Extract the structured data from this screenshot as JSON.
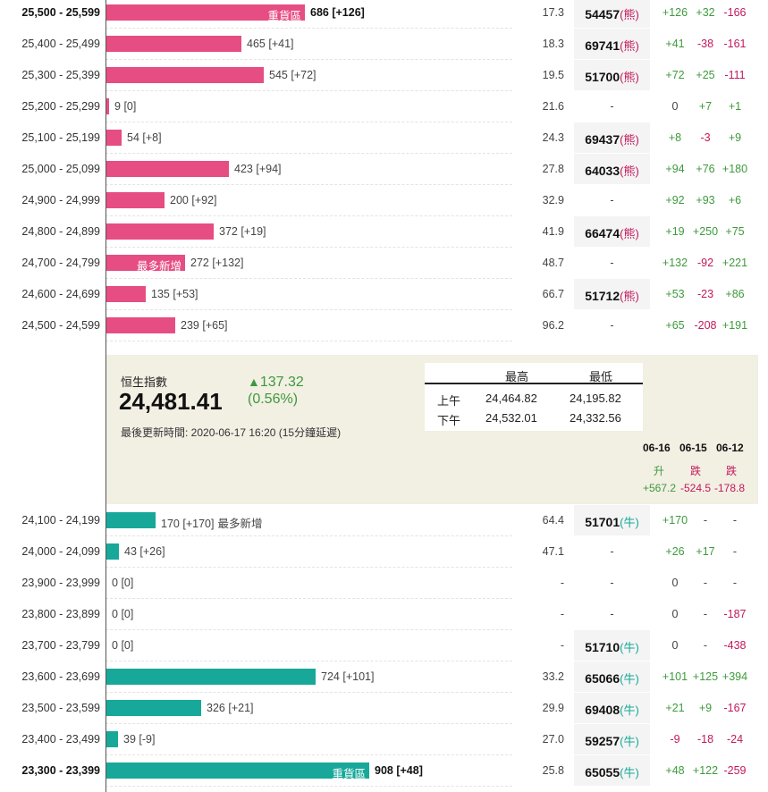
{
  "upper_rows": [
    {
      "range": "25,500 - 25,599",
      "bold": true,
      "bar_value": 686,
      "count": "686",
      "delta": "[+126]",
      "inbar": "重貨區",
      "outlabel": "",
      "pct": "17.3",
      "code": "54457",
      "suffix": "(熊)",
      "d1": "+126",
      "d2": "+32",
      "d3": "-166"
    },
    {
      "range": "25,400 - 25,499",
      "bold": false,
      "bar_value": 465,
      "count": "465",
      "delta": "[+41]",
      "inbar": "",
      "outlabel": "",
      "pct": "18.3",
      "code": "69741",
      "suffix": "(熊)",
      "d1": "+41",
      "d2": "-38",
      "d3": "-161"
    },
    {
      "range": "25,300 - 25,399",
      "bold": false,
      "bar_value": 545,
      "count": "545",
      "delta": "[+72]",
      "inbar": "",
      "outlabel": "",
      "pct": "19.5",
      "code": "51700",
      "suffix": "(熊)",
      "d1": "+72",
      "d2": "+25",
      "d3": "-111"
    },
    {
      "range": "25,200 - 25,299",
      "bold": false,
      "bar_value": 9,
      "count": "9",
      "delta": "[0]",
      "inbar": "",
      "outlabel": "",
      "pct": "21.6",
      "code": "-",
      "suffix": "",
      "d1": "0",
      "d2": "+7",
      "d3": "+1"
    },
    {
      "range": "25,100 - 25,199",
      "bold": false,
      "bar_value": 54,
      "count": "54",
      "delta": "[+8]",
      "inbar": "",
      "outlabel": "",
      "pct": "24.3",
      "code": "69437",
      "suffix": "(熊)",
      "d1": "+8",
      "d2": "-3",
      "d3": "+9"
    },
    {
      "range": "25,000 - 25,099",
      "bold": false,
      "bar_value": 423,
      "count": "423",
      "delta": "[+94]",
      "inbar": "",
      "outlabel": "",
      "pct": "27.8",
      "code": "64033",
      "suffix": "(熊)",
      "d1": "+94",
      "d2": "+76",
      "d3": "+180"
    },
    {
      "range": "24,900 - 24,999",
      "bold": false,
      "bar_value": 200,
      "count": "200",
      "delta": "[+92]",
      "inbar": "",
      "outlabel": "",
      "pct": "32.9",
      "code": "-",
      "suffix": "",
      "d1": "+92",
      "d2": "+93",
      "d3": "+6"
    },
    {
      "range": "24,800 - 24,899",
      "bold": false,
      "bar_value": 372,
      "count": "372",
      "delta": "[+19]",
      "inbar": "",
      "outlabel": "",
      "pct": "41.9",
      "code": "66474",
      "suffix": "(熊)",
      "d1": "+19",
      "d2": "+250",
      "d3": "+75"
    },
    {
      "range": "24,700 - 24,799",
      "bold": false,
      "bar_value": 272,
      "count": "272",
      "delta": "[+132]",
      "inbar": "最多新增",
      "outlabel": "",
      "pct": "48.7",
      "code": "-",
      "suffix": "",
      "d1": "+132",
      "d2": "-92",
      "d3": "+221"
    },
    {
      "range": "24,600 - 24,699",
      "bold": false,
      "bar_value": 135,
      "count": "135",
      "delta": "[+53]",
      "inbar": "",
      "outlabel": "",
      "pct": "66.7",
      "code": "51712",
      "suffix": "(熊)",
      "d1": "+53",
      "d2": "-23",
      "d3": "+86"
    },
    {
      "range": "24,500 - 24,599",
      "bold": false,
      "bar_value": 239,
      "count": "239",
      "delta": "[+65]",
      "inbar": "",
      "outlabel": "",
      "pct": "96.2",
      "code": "-",
      "suffix": "",
      "d1": "+65",
      "d2": "-208",
      "d3": "+191"
    }
  ],
  "lower_rows": [
    {
      "range": "24,100 - 24,199",
      "bold": false,
      "bar_value": 170,
      "count": "170",
      "delta": "[+170]",
      "inbar": "",
      "outlabel": "最多新增",
      "pct": "64.4",
      "code": "51701",
      "suffix": "(牛)",
      "d1": "+170",
      "d2": "-",
      "d3": "-"
    },
    {
      "range": "24,000 - 24,099",
      "bold": false,
      "bar_value": 43,
      "count": "43",
      "delta": "[+26]",
      "inbar": "",
      "outlabel": "",
      "pct": "47.1",
      "code": "-",
      "suffix": "",
      "d1": "+26",
      "d2": "+17",
      "d3": "-"
    },
    {
      "range": "23,900 - 23,999",
      "bold": false,
      "bar_value": 0,
      "count": "0",
      "delta": "[0]",
      "inbar": "",
      "outlabel": "",
      "pct": "-",
      "code": "-",
      "suffix": "",
      "d1": "0",
      "d2": "-",
      "d3": "-"
    },
    {
      "range": "23,800 - 23,899",
      "bold": false,
      "bar_value": 0,
      "count": "0",
      "delta": "[0]",
      "inbar": "",
      "outlabel": "",
      "pct": "-",
      "code": "-",
      "suffix": "",
      "d1": "0",
      "d2": "-",
      "d3": "-187"
    },
    {
      "range": "23,700 - 23,799",
      "bold": false,
      "bar_value": 0,
      "count": "0",
      "delta": "[0]",
      "inbar": "",
      "outlabel": "",
      "pct": "-",
      "code": "51710",
      "suffix": "(牛)",
      "d1": "0",
      "d2": "-",
      "d3": "-438"
    },
    {
      "range": "23,600 - 23,699",
      "bold": false,
      "bar_value": 724,
      "count": "724",
      "delta": "[+101]",
      "inbar": "",
      "outlabel": "",
      "pct": "33.2",
      "code": "65066",
      "suffix": "(牛)",
      "d1": "+101",
      "d2": "+125",
      "d3": "+394"
    },
    {
      "range": "23,500 - 23,599",
      "bold": false,
      "bar_value": 326,
      "count": "326",
      "delta": "[+21]",
      "inbar": "",
      "outlabel": "",
      "pct": "29.9",
      "code": "69408",
      "suffix": "(牛)",
      "d1": "+21",
      "d2": "+9",
      "d3": "-167"
    },
    {
      "range": "23,400 - 23,499",
      "bold": false,
      "bar_value": 39,
      "count": "39",
      "delta": "[-9]",
      "inbar": "",
      "outlabel": "",
      "pct": "27.0",
      "code": "59257",
      "suffix": "(牛)",
      "d1": "-9",
      "d2": "-18",
      "d3": "-24"
    },
    {
      "range": "23,300 - 23,399",
      "bold": true,
      "bar_value": 908,
      "count": "908",
      "delta": "[+48]",
      "inbar": "重貨區",
      "outlabel": "",
      "pct": "25.8",
      "code": "65055",
      "suffix": "(牛)",
      "d1": "+48",
      "d2": "+122",
      "d3": "-259"
    }
  ],
  "index_panel": {
    "label": "恒生指數",
    "value": "24,481.41",
    "change": "137.32",
    "change_arrow": "▲",
    "change_pct": "(0.56%)",
    "updated": "最後更新時間: 2020-06-17 16:20 (15分鐘延遲)",
    "hl_headers": {
      "high": "最高",
      "low": "最低"
    },
    "hl_rows": [
      {
        "session": "上午",
        "high": "24,464.82",
        "low": "24,195.82"
      },
      {
        "session": "下午",
        "high": "24,532.01",
        "low": "24,332.56"
      }
    ],
    "dates": [
      {
        "date": "06-16",
        "dir": "升",
        "change": "+567.2",
        "up": true
      },
      {
        "date": "06-15",
        "dir": "跌",
        "change": "-524.5",
        "up": false
      },
      {
        "date": "06-12",
        "dir": "跌",
        "change": "-178.8",
        "up": false
      }
    ]
  },
  "colors": {
    "bear_bar": "#e64d82",
    "bull_bar": "#17a899",
    "up": "#3d9a3d",
    "down": "#c2185b",
    "panel_bg": "#f2efe3"
  },
  "bar_scale_max": 908
}
